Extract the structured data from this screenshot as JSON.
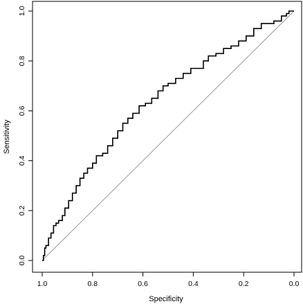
{
  "chart_data": {
    "type": "line",
    "title": "",
    "xlabel": "Specificity",
    "ylabel": "Sensitivity",
    "x_reversed": true,
    "xlim": [
      1.0,
      0.0
    ],
    "ylim": [
      0.0,
      1.0
    ],
    "x_ticks": [
      1.0,
      0.8,
      0.6,
      0.4,
      0.2,
      0.0
    ],
    "x_tick_labels": [
      "1.0",
      "0.8",
      "0.6",
      "0.4",
      "0.2",
      "0.0"
    ],
    "y_ticks": [
      0.0,
      0.2,
      0.4,
      0.6,
      0.8,
      1.0
    ],
    "y_tick_labels": [
      "0.0",
      "0.2",
      "0.4",
      "0.6",
      "0.8",
      "1.0"
    ],
    "grid": false,
    "legend": "none",
    "reference_line": {
      "from": [
        1.0,
        0.0
      ],
      "to": [
        0.0,
        1.0
      ],
      "color": "#999999"
    },
    "series": [
      {
        "color": "#000000",
        "x": [
          1.0,
          0.995,
          0.99,
          0.985,
          0.975,
          0.965,
          0.955,
          0.945,
          0.935,
          0.92,
          0.91,
          0.895,
          0.88,
          0.865,
          0.85,
          0.835,
          0.82,
          0.8,
          0.785,
          0.76,
          0.74,
          0.72,
          0.7,
          0.68,
          0.66,
          0.64,
          0.615,
          0.59,
          0.565,
          0.54,
          0.52,
          0.5,
          0.47,
          0.44,
          0.41,
          0.39,
          0.36,
          0.34,
          0.31,
          0.28,
          0.25,
          0.22,
          0.19,
          0.16,
          0.13,
          0.11,
          0.08,
          0.05,
          0.03,
          0.02,
          0.0
        ],
        "y": [
          0.0,
          0.02,
          0.05,
          0.06,
          0.09,
          0.11,
          0.14,
          0.15,
          0.16,
          0.18,
          0.21,
          0.24,
          0.27,
          0.3,
          0.33,
          0.35,
          0.37,
          0.39,
          0.42,
          0.43,
          0.46,
          0.49,
          0.52,
          0.55,
          0.57,
          0.59,
          0.62,
          0.63,
          0.65,
          0.68,
          0.7,
          0.71,
          0.73,
          0.75,
          0.77,
          0.77,
          0.8,
          0.82,
          0.83,
          0.85,
          0.86,
          0.88,
          0.9,
          0.93,
          0.95,
          0.95,
          0.96,
          0.98,
          0.99,
          1.0,
          1.0
        ]
      }
    ]
  }
}
